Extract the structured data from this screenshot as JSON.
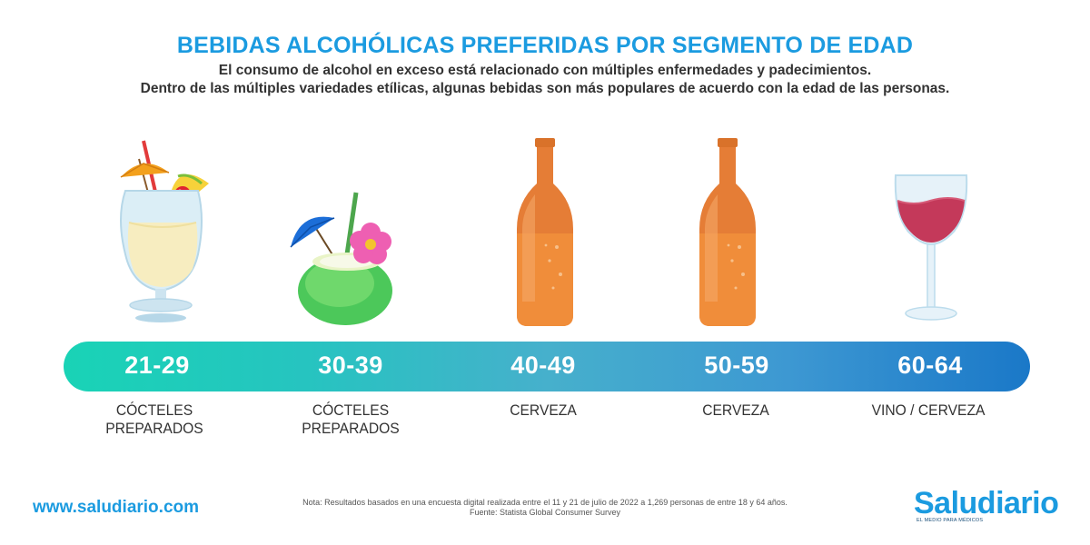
{
  "header": {
    "title": "BEBIDAS ALCOHÓLICAS PREFERIDAS POR SEGMENTO DE EDAD",
    "subtitle_line1": "El consumo de alcohol en exceso está relacionado con múltiples enfermedades y padecimientos.",
    "subtitle_line2": "Dentro de las múltiples variedades etílicas, algunas bebidas son más populares de acuerdo con la edad de las personas."
  },
  "segments": [
    {
      "age": "21-29",
      "drink_line1": "CÓCTELES",
      "drink_line2": "PREPARADOS",
      "icon": "pina-colada-cocktail-icon"
    },
    {
      "age": "30-39",
      "drink_line1": "CÓCTELES",
      "drink_line2": "PREPARADOS",
      "icon": "coconut-cocktail-icon"
    },
    {
      "age": "40-49",
      "drink_line1": "CERVEZA",
      "drink_line2": "",
      "icon": "beer-bottle-icon"
    },
    {
      "age": "50-59",
      "drink_line1": "CERVEZA",
      "drink_line2": "",
      "icon": "beer-bottle-icon"
    },
    {
      "age": "60-64",
      "drink_line1": "VINO / CERVEZA",
      "drink_line2": "",
      "icon": "wine-glass-icon"
    }
  ],
  "footer": {
    "website": "www.saludiario.com",
    "note_line1": "Nota: Resultados basados en una encuesta digital realizada entre el 11 y 21 de julio de 2022 a 1,269 personas de entre 18 y 64 años.",
    "note_line2": "Fuente: Statista Global Consumer Survey",
    "logo_name": "Saludiario",
    "logo_tagline": "EL MEDIO PARA MÉDICOS"
  },
  "colors": {
    "accent": "#1b9be0",
    "bar_start": "#19d3b6",
    "bar_end": "#1a78c8",
    "text": "#333333"
  }
}
